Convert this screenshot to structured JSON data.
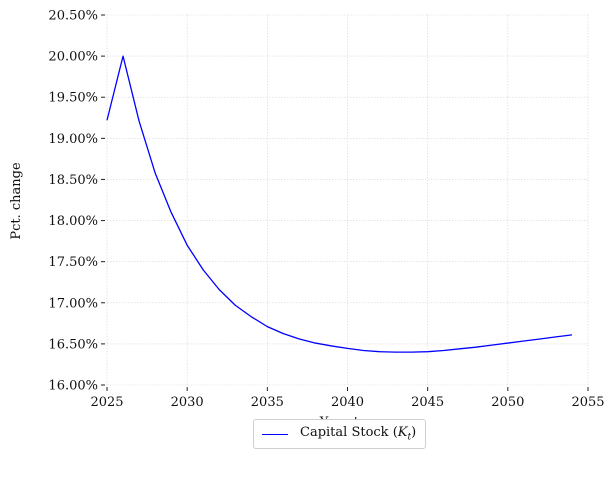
{
  "chart_data": {
    "type": "line",
    "title": "",
    "xlabel": "Year",
    "xlabel_var": "t",
    "ylabel": "Pct. change",
    "xlim": [
      2025,
      2055
    ],
    "ylim": [
      16.0,
      20.5
    ],
    "x_ticks": [
      2025,
      2030,
      2035,
      2040,
      2045,
      2050,
      2055
    ],
    "y_ticks": [
      16.0,
      16.5,
      17.0,
      17.5,
      18.0,
      18.5,
      19.0,
      19.5,
      20.0,
      20.5
    ],
    "y_tick_labels": [
      "16.00%",
      "16.50%",
      "17.00%",
      "17.50%",
      "18.00%",
      "18.50%",
      "19.00%",
      "19.50%",
      "20.00%",
      "20.50%"
    ],
    "grid": true,
    "legend_position": "bottom-center",
    "series": [
      {
        "name": "Capital Stock (Kt)",
        "legend_label": "Capital Stock (",
        "legend_var": "K",
        "legend_sub": "t",
        "legend_close": ")",
        "color": "#0000ff",
        "x": [
          2025,
          2026,
          2027,
          2028,
          2029,
          2030,
          2031,
          2032,
          2033,
          2034,
          2035,
          2036,
          2037,
          2038,
          2039,
          2040,
          2041,
          2042,
          2043,
          2044,
          2045,
          2046,
          2047,
          2048,
          2049,
          2050,
          2051,
          2052,
          2053,
          2054
        ],
        "values": [
          19.22,
          20.0,
          19.21,
          18.58,
          18.1,
          17.7,
          17.4,
          17.16,
          16.97,
          16.83,
          16.71,
          16.625,
          16.56,
          16.51,
          16.475,
          16.445,
          16.42,
          16.405,
          16.4,
          16.4,
          16.405,
          16.42,
          16.44,
          16.46,
          16.485,
          16.51,
          16.535,
          16.56,
          16.585,
          16.61
        ]
      }
    ]
  }
}
